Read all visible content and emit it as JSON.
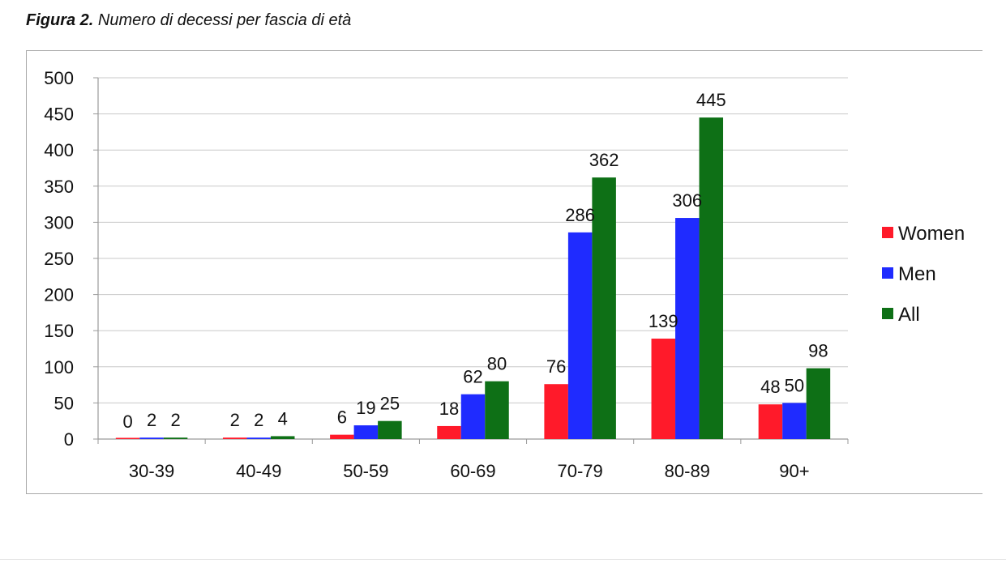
{
  "caption": {
    "lead": "Figura 2.",
    "text": " Numero di decessi per fascia di età"
  },
  "chart_data": {
    "type": "bar",
    "title": "",
    "xlabel": "",
    "ylabel": "",
    "categories": [
      "30-39",
      "40-49",
      "50-59",
      "60-69",
      "70-79",
      "80-89",
      "90+"
    ],
    "series": [
      {
        "name": "Women",
        "color": "#ff1a2a",
        "values": [
          0,
          2,
          6,
          18,
          76,
          139,
          48
        ]
      },
      {
        "name": "Men",
        "color": "#1f2bff",
        "values": [
          2,
          2,
          19,
          62,
          286,
          306,
          50
        ]
      },
      {
        "name": "All",
        "color": "#0e7016",
        "values": [
          2,
          4,
          25,
          80,
          362,
          445,
          98
        ]
      }
    ],
    "ylim": [
      0,
      500
    ],
    "yticks": [
      0,
      50,
      100,
      150,
      200,
      250,
      300,
      350,
      400,
      450,
      500
    ],
    "grid": true,
    "legend": "right",
    "data_labels": true
  }
}
